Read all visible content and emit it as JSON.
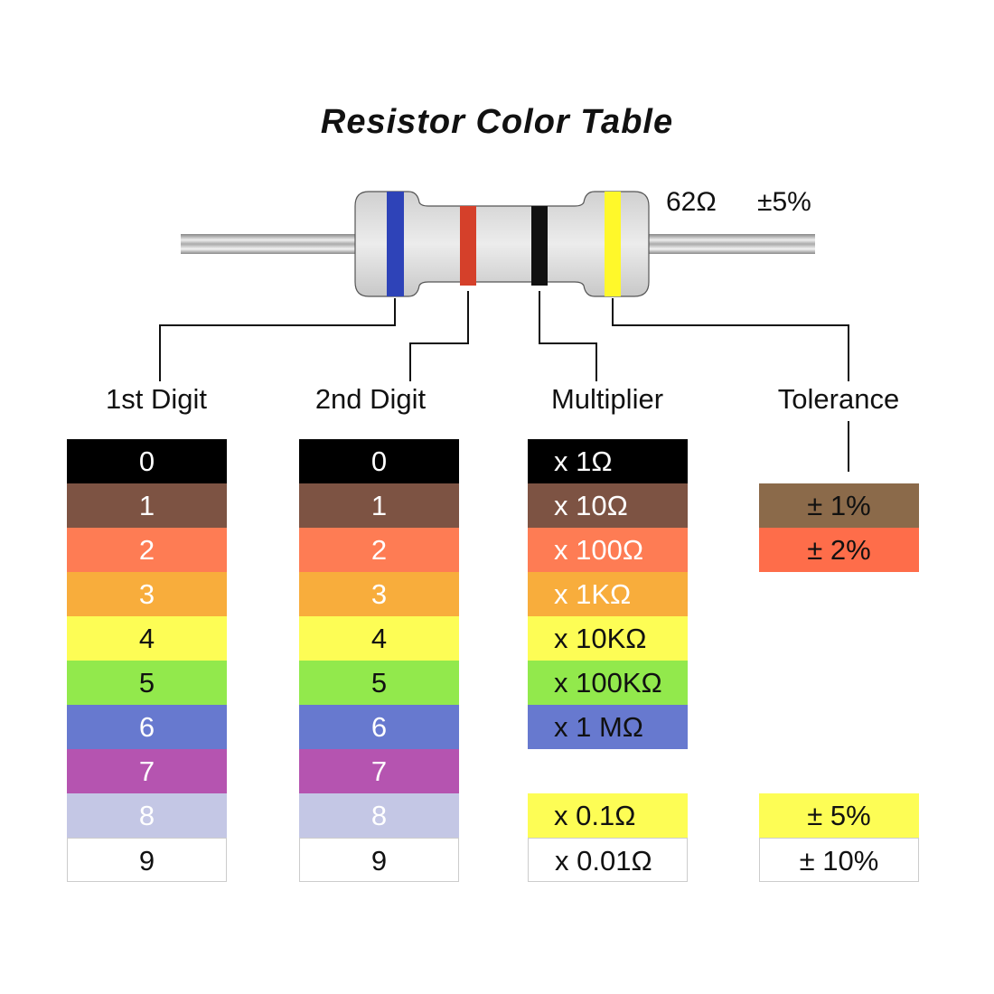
{
  "title": "Resistor Color Table",
  "resistor": {
    "value": "62Ω",
    "tolerance": "±5%",
    "bands": [
      "#2e43b8",
      "#d5402a",
      "#111111",
      "#fff82a"
    ]
  },
  "headers": {
    "digit1": "1st Digit",
    "digit2": "2nd Digit",
    "multiplier": "Multiplier",
    "tolerance": "Tolerance"
  },
  "colors": {
    "black": "#000000",
    "brown": "#7d5343",
    "red": "#fe7c54",
    "orange": "#f8ad3c",
    "yellow": "#fdfd55",
    "green": "#92e94c",
    "blue": "#6779cf",
    "violet": "#b554b0",
    "grey": "#c4c7e5",
    "white": "#ffffff",
    "tol_brown": "#8b6a4a",
    "tol_red": "#fe6d4a"
  },
  "digits": [
    {
      "label": "0",
      "color": "#000000",
      "text": "#ffffff"
    },
    {
      "label": "1",
      "color": "#7d5343",
      "text": "#ffffff"
    },
    {
      "label": "2",
      "color": "#fe7c54",
      "text": "#ffffff"
    },
    {
      "label": "3",
      "color": "#f8ad3c",
      "text": "#ffffff"
    },
    {
      "label": "4",
      "color": "#fdfd55",
      "text": "#111111"
    },
    {
      "label": "5",
      "color": "#92e94c",
      "text": "#111111"
    },
    {
      "label": "6",
      "color": "#6779cf",
      "text": "#ffffff"
    },
    {
      "label": "7",
      "color": "#b554b0",
      "text": "#ffffff"
    },
    {
      "label": "8",
      "color": "#c4c7e5",
      "text": "#ffffff"
    },
    {
      "label": "9",
      "color": "#ffffff",
      "text": "#111111"
    }
  ],
  "multipliers": [
    {
      "label": "x 1Ω",
      "color": "#000000",
      "text": "#ffffff"
    },
    {
      "label": "x 10Ω",
      "color": "#7d5343",
      "text": "#ffffff"
    },
    {
      "label": "x 100Ω",
      "color": "#fe7c54",
      "text": "#ffffff"
    },
    {
      "label": "x 1KΩ",
      "color": "#f8ad3c",
      "text": "#ffffff"
    },
    {
      "label": "x 10KΩ",
      "color": "#fdfd55",
      "text": "#111111"
    },
    {
      "label": "x 100KΩ",
      "color": "#92e94c",
      "text": "#111111"
    },
    {
      "label": "x 1 MΩ",
      "color": "#6779cf",
      "text": "#111111"
    },
    null,
    {
      "label": "x 0.1Ω",
      "color": "#fdfd55",
      "text": "#111111"
    },
    {
      "label": "x 0.01Ω",
      "color": "#ffffff",
      "text": "#111111"
    }
  ],
  "tolerances": [
    null,
    {
      "label": "± 1%",
      "color": "#8b6a4a",
      "text": "#111111"
    },
    {
      "label": "± 2%",
      "color": "#fe6d4a",
      "text": "#111111"
    },
    null,
    null,
    null,
    null,
    null,
    {
      "label": "± 5%",
      "color": "#fdfd55",
      "text": "#111111"
    },
    {
      "label": "± 10%",
      "color": "#ffffff",
      "text": "#111111"
    }
  ]
}
